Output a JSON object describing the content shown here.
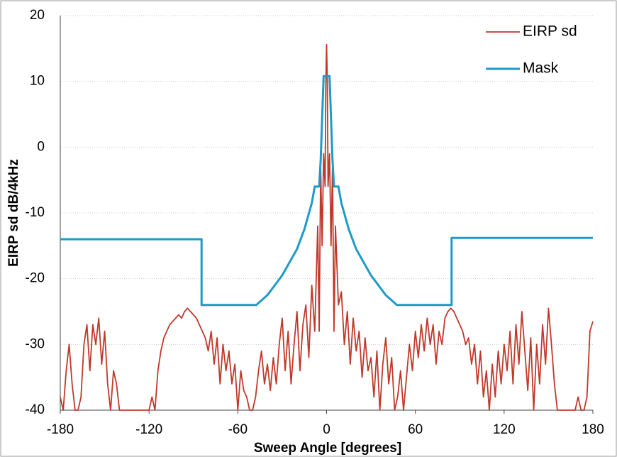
{
  "chart_data": {
    "type": "line",
    "xlabel": "Sweep Angle [degrees]",
    "ylabel": "EIRP sd dB/4kHz",
    "xlim": [
      -180,
      180
    ],
    "xticks": [
      -180,
      -120,
      -60,
      0,
      60,
      120,
      180
    ],
    "ylim": [
      -40,
      20
    ],
    "yticks": [
      -40,
      -30,
      -20,
      -10,
      0,
      10,
      20
    ],
    "grid": true,
    "legend": "upper right",
    "series": [
      {
        "name": "EIRP sd",
        "color": "#c0392b",
        "x": [
          -180,
          -178,
          -176,
          -174,
          -172,
          -170,
          -168,
          -166,
          -164,
          -162,
          -160,
          -158,
          -156,
          -154,
          -152,
          -150,
          -148,
          -146,
          -144,
          -142,
          -140,
          -138,
          -136,
          -134,
          -132,
          -130,
          -128,
          -126,
          -124,
          -122,
          -120,
          -118,
          -116,
          -114,
          -112,
          -110,
          -108,
          -106,
          -104,
          -102,
          -100,
          -98,
          -96,
          -94,
          -92,
          -90,
          -88,
          -86,
          -84,
          -82,
          -80,
          -78,
          -76,
          -74,
          -72,
          -70,
          -68,
          -66,
          -64,
          -62,
          -60,
          -58,
          -56,
          -54,
          -52,
          -50,
          -48,
          -46,
          -44,
          -42,
          -40,
          -38,
          -36,
          -34,
          -32,
          -30,
          -28,
          -26,
          -24,
          -22,
          -20,
          -18,
          -16,
          -14,
          -12,
          -10,
          -8,
          -6,
          -5,
          -4,
          -3,
          -2,
          -1,
          -0.5,
          0,
          0.5,
          1,
          2,
          3,
          4,
          5,
          6,
          8,
          10,
          12,
          14,
          16,
          18,
          20,
          22,
          24,
          26,
          28,
          30,
          32,
          34,
          36,
          38,
          40,
          42,
          44,
          46,
          48,
          50,
          52,
          54,
          56,
          58,
          60,
          62,
          64,
          66,
          68,
          70,
          72,
          74,
          76,
          78,
          80,
          82,
          84,
          86,
          88,
          90,
          92,
          94,
          96,
          98,
          100,
          102,
          104,
          106,
          108,
          110,
          112,
          114,
          116,
          118,
          120,
          122,
          124,
          126,
          128,
          130,
          132,
          134,
          136,
          138,
          140,
          142,
          144,
          146,
          148,
          150,
          152,
          154,
          156,
          158,
          160,
          162,
          164,
          166,
          168,
          170,
          172,
          174,
          176,
          178,
          180
        ],
        "values": [
          -38,
          -40,
          -34,
          -30,
          -36,
          -40,
          -40,
          -38,
          -30,
          -27,
          -34,
          -27,
          -30,
          -26,
          -33,
          -28,
          -36,
          -40,
          -34,
          -36,
          -40,
          -40,
          -40,
          -40,
          -40,
          -40,
          -40,
          -40,
          -40,
          -40,
          -40,
          -38,
          -40,
          -34,
          -31,
          -29,
          -28,
          -27,
          -26.5,
          -26,
          -25.5,
          -26,
          -25,
          -24.5,
          -25,
          -25.5,
          -26,
          -27,
          -28,
          -29,
          -31,
          -28,
          -33,
          -29,
          -36,
          -30,
          -34,
          -31,
          -36,
          -33,
          -40,
          -34,
          -37,
          -38,
          -40,
          -40,
          -38,
          -34,
          -31,
          -36,
          -33,
          -37,
          -32,
          -36,
          -30,
          -26,
          -34,
          -28,
          -36,
          -30,
          -25,
          -34,
          -27,
          -24,
          -32,
          -21,
          -28,
          -12,
          -28,
          -3,
          -15,
          -1,
          -6,
          10,
          15.6,
          10,
          -6,
          -1,
          -15,
          -3,
          -28,
          -12,
          -24,
          -22,
          -30,
          -25,
          -33,
          -26,
          -31,
          -28,
          -35,
          -29,
          -34,
          -32,
          -38,
          -31,
          -40,
          -33,
          -29,
          -36,
          -32,
          -40,
          -38,
          -34,
          -40,
          -35,
          -30,
          -34,
          -28,
          -32,
          -27,
          -31,
          -26,
          -30,
          -27,
          -33,
          -28,
          -30,
          -26,
          -25,
          -24.5,
          -25,
          -26,
          -27,
          -28,
          -30,
          -29,
          -33,
          -30,
          -36,
          -31,
          -38,
          -34,
          -40,
          -33,
          -38,
          -31,
          -36,
          -30,
          -34,
          -28,
          -36,
          -27,
          -33,
          -25,
          -31,
          -37,
          -29,
          -40,
          -30,
          -36,
          -27,
          -33,
          -24.5,
          -30,
          -36,
          -40,
          -40,
          -40,
          -40,
          -40,
          -40,
          -40,
          -38,
          -40,
          -40,
          -38,
          -28,
          -26.5
        ]
      },
      {
        "name": "Mask",
        "color": "#1f9ac9",
        "x": [
          -180,
          -84.5,
          -84.5,
          -47.5,
          -40,
          -30,
          -20,
          -15,
          -10,
          -8,
          -5,
          -4,
          -2,
          -1.5,
          1.5,
          2,
          4,
          5,
          8,
          10,
          15,
          20,
          30,
          40,
          47.5,
          84.5,
          84.5,
          180
        ],
        "values": [
          -14,
          -14,
          -24,
          -24,
          -22.5,
          -19.5,
          -15.5,
          -12.5,
          -8.5,
          -6,
          -6,
          -2,
          10.8,
          10.8,
          10.8,
          10.8,
          -2,
          -6,
          -6,
          -8.5,
          -12.5,
          -15.5,
          -19.5,
          -22.5,
          -24,
          -24,
          -13.8,
          -13.8
        ]
      }
    ]
  }
}
